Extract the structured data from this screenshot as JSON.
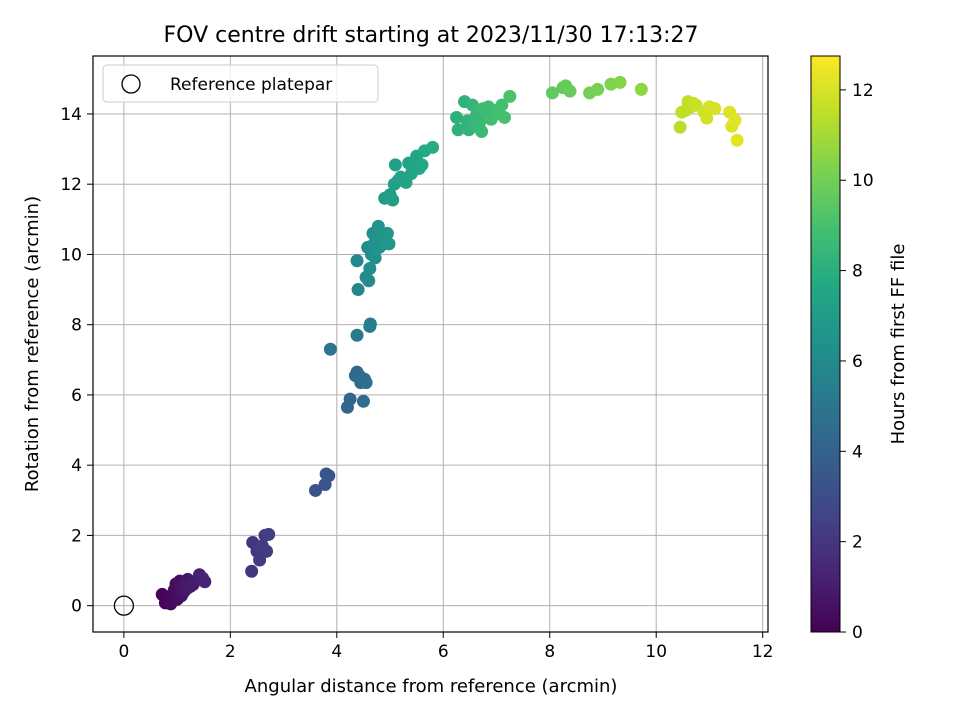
{
  "chart_data": {
    "type": "scatter",
    "title": "FOV centre drift starting at 2023/11/30 17:13:27",
    "xlabel": "Angular distance from reference (arcmin)",
    "ylabel": "Rotation from reference (arcmin)",
    "xlim": [
      -0.58,
      12.1
    ],
    "ylim": [
      -0.75,
      15.65
    ],
    "xticks": [
      0,
      2,
      4,
      6,
      8,
      10,
      12
    ],
    "yticks": [
      0,
      2,
      4,
      6,
      8,
      10,
      12,
      14
    ],
    "grid": true,
    "legend": {
      "position": "top-left",
      "entries": [
        "Reference platepar"
      ]
    },
    "reference_point": {
      "x": 0,
      "y": 0
    },
    "colorbar": {
      "label": "Hours from first FF file",
      "colormap": "viridis",
      "range": [
        0,
        12.75
      ],
      "ticks": [
        0,
        2,
        4,
        6,
        8,
        10,
        12
      ]
    },
    "points": [
      {
        "x": 0.72,
        "y": 0.32,
        "c": 0.1
      },
      {
        "x": 0.78,
        "y": 0.08,
        "c": 0.15
      },
      {
        "x": 0.82,
        "y": 0.22,
        "c": 0.2
      },
      {
        "x": 0.88,
        "y": 0.05,
        "c": 0.25
      },
      {
        "x": 0.9,
        "y": 0.3,
        "c": 0.3
      },
      {
        "x": 0.95,
        "y": 0.45,
        "c": 0.35
      },
      {
        "x": 0.98,
        "y": 0.62,
        "c": 0.4
      },
      {
        "x": 1.0,
        "y": 0.18,
        "c": 0.45
      },
      {
        "x": 1.03,
        "y": 0.4,
        "c": 0.5
      },
      {
        "x": 1.05,
        "y": 0.7,
        "c": 0.55
      },
      {
        "x": 1.08,
        "y": 0.28,
        "c": 0.6
      },
      {
        "x": 1.1,
        "y": 0.55,
        "c": 0.65
      },
      {
        "x": 1.12,
        "y": 0.38,
        "c": 0.7
      },
      {
        "x": 1.15,
        "y": 0.65,
        "c": 0.75
      },
      {
        "x": 1.18,
        "y": 0.48,
        "c": 0.8
      },
      {
        "x": 1.2,
        "y": 0.75,
        "c": 0.85
      },
      {
        "x": 1.25,
        "y": 0.55,
        "c": 0.9
      },
      {
        "x": 1.3,
        "y": 0.6,
        "c": 1.0
      },
      {
        "x": 1.42,
        "y": 0.88,
        "c": 1.1
      },
      {
        "x": 1.48,
        "y": 0.78,
        "c": 1.2
      },
      {
        "x": 1.52,
        "y": 0.68,
        "c": 1.25
      },
      {
        "x": 2.4,
        "y": 0.98,
        "c": 1.9
      },
      {
        "x": 2.42,
        "y": 1.8,
        "c": 1.95
      },
      {
        "x": 2.5,
        "y": 1.55,
        "c": 2.05
      },
      {
        "x": 2.55,
        "y": 1.3,
        "c": 2.1
      },
      {
        "x": 2.6,
        "y": 1.7,
        "c": 2.15
      },
      {
        "x": 2.65,
        "y": 2.0,
        "c": 2.2
      },
      {
        "x": 2.68,
        "y": 1.55,
        "c": 2.25
      },
      {
        "x": 2.72,
        "y": 2.03,
        "c": 2.3
      },
      {
        "x": 3.6,
        "y": 3.28,
        "c": 3.2
      },
      {
        "x": 3.78,
        "y": 3.45,
        "c": 3.3
      },
      {
        "x": 3.8,
        "y": 3.75,
        "c": 3.35
      },
      {
        "x": 3.85,
        "y": 3.7,
        "c": 3.4
      },
      {
        "x": 4.2,
        "y": 5.65,
        "c": 4.2
      },
      {
        "x": 4.25,
        "y": 5.88,
        "c": 4.25
      },
      {
        "x": 4.35,
        "y": 6.55,
        "c": 4.3
      },
      {
        "x": 4.38,
        "y": 6.65,
        "c": 4.35
      },
      {
        "x": 4.42,
        "y": 6.55,
        "c": 4.4
      },
      {
        "x": 4.45,
        "y": 6.35,
        "c": 4.45
      },
      {
        "x": 4.5,
        "y": 5.82,
        "c": 4.5
      },
      {
        "x": 4.52,
        "y": 6.45,
        "c": 4.55
      },
      {
        "x": 4.55,
        "y": 6.35,
        "c": 4.6
      },
      {
        "x": 3.88,
        "y": 7.3,
        "c": 5.0
      },
      {
        "x": 4.38,
        "y": 7.7,
        "c": 5.2
      },
      {
        "x": 4.62,
        "y": 7.95,
        "c": 5.3
      },
      {
        "x": 4.63,
        "y": 8.02,
        "c": 5.35
      },
      {
        "x": 4.4,
        "y": 9.0,
        "c": 5.8
      },
      {
        "x": 4.38,
        "y": 9.82,
        "c": 5.9
      },
      {
        "x": 4.55,
        "y": 9.35,
        "c": 6.0
      },
      {
        "x": 4.6,
        "y": 9.25,
        "c": 6.05
      },
      {
        "x": 4.62,
        "y": 9.6,
        "c": 6.1
      },
      {
        "x": 4.58,
        "y": 10.2,
        "c": 6.15
      },
      {
        "x": 4.65,
        "y": 10.0,
        "c": 6.2
      },
      {
        "x": 4.68,
        "y": 10.6,
        "c": 6.25
      },
      {
        "x": 4.7,
        "y": 10.3,
        "c": 6.3
      },
      {
        "x": 4.72,
        "y": 9.9,
        "c": 6.35
      },
      {
        "x": 4.75,
        "y": 10.45,
        "c": 6.4
      },
      {
        "x": 4.78,
        "y": 10.8,
        "c": 6.45
      },
      {
        "x": 4.8,
        "y": 10.2,
        "c": 6.5
      },
      {
        "x": 4.85,
        "y": 10.55,
        "c": 6.55
      },
      {
        "x": 4.88,
        "y": 10.3,
        "c": 6.6
      },
      {
        "x": 4.92,
        "y": 10.45,
        "c": 6.65
      },
      {
        "x": 4.95,
        "y": 10.6,
        "c": 6.7
      },
      {
        "x": 4.98,
        "y": 10.3,
        "c": 6.75
      },
      {
        "x": 4.9,
        "y": 11.6,
        "c": 7.0
      },
      {
        "x": 5.0,
        "y": 11.7,
        "c": 7.05
      },
      {
        "x": 5.05,
        "y": 11.55,
        "c": 7.1
      },
      {
        "x": 5.08,
        "y": 12.0,
        "c": 7.15
      },
      {
        "x": 5.1,
        "y": 12.55,
        "c": 7.2
      },
      {
        "x": 5.15,
        "y": 12.1,
        "c": 7.25
      },
      {
        "x": 5.2,
        "y": 12.2,
        "c": 7.3
      },
      {
        "x": 5.3,
        "y": 12.05,
        "c": 7.35
      },
      {
        "x": 5.35,
        "y": 12.6,
        "c": 7.4
      },
      {
        "x": 5.4,
        "y": 12.3,
        "c": 7.45
      },
      {
        "x": 5.45,
        "y": 12.55,
        "c": 7.5
      },
      {
        "x": 5.5,
        "y": 12.8,
        "c": 7.55
      },
      {
        "x": 5.55,
        "y": 12.45,
        "c": 7.6
      },
      {
        "x": 5.6,
        "y": 12.55,
        "c": 7.65
      },
      {
        "x": 5.65,
        "y": 12.95,
        "c": 7.7
      },
      {
        "x": 5.8,
        "y": 13.05,
        "c": 7.8
      },
      {
        "x": 6.25,
        "y": 13.9,
        "c": 8.1
      },
      {
        "x": 6.28,
        "y": 13.55,
        "c": 8.15
      },
      {
        "x": 6.4,
        "y": 14.35,
        "c": 8.2
      },
      {
        "x": 6.45,
        "y": 13.8,
        "c": 8.25
      },
      {
        "x": 6.48,
        "y": 13.55,
        "c": 8.3
      },
      {
        "x": 6.55,
        "y": 14.25,
        "c": 8.35
      },
      {
        "x": 6.58,
        "y": 13.65,
        "c": 8.4
      },
      {
        "x": 6.62,
        "y": 13.95,
        "c": 8.45
      },
      {
        "x": 6.65,
        "y": 14.1,
        "c": 8.5
      },
      {
        "x": 6.68,
        "y": 13.75,
        "c": 8.55
      },
      {
        "x": 6.72,
        "y": 13.5,
        "c": 8.6
      },
      {
        "x": 6.75,
        "y": 14.15,
        "c": 8.65
      },
      {
        "x": 6.8,
        "y": 14.05,
        "c": 8.7
      },
      {
        "x": 6.85,
        "y": 14.2,
        "c": 8.75
      },
      {
        "x": 6.9,
        "y": 13.85,
        "c": 8.8
      },
      {
        "x": 7.0,
        "y": 14.1,
        "c": 8.85
      },
      {
        "x": 7.05,
        "y": 14.0,
        "c": 8.9
      },
      {
        "x": 7.1,
        "y": 14.25,
        "c": 8.95
      },
      {
        "x": 7.15,
        "y": 13.9,
        "c": 9.0
      },
      {
        "x": 7.25,
        "y": 14.5,
        "c": 9.1
      },
      {
        "x": 8.05,
        "y": 14.6,
        "c": 9.6
      },
      {
        "x": 8.25,
        "y": 14.75,
        "c": 9.7
      },
      {
        "x": 8.3,
        "y": 14.8,
        "c": 9.75
      },
      {
        "x": 8.38,
        "y": 14.65,
        "c": 9.8
      },
      {
        "x": 8.75,
        "y": 14.6,
        "c": 10.0
      },
      {
        "x": 8.9,
        "y": 14.7,
        "c": 10.1
      },
      {
        "x": 9.15,
        "y": 14.85,
        "c": 10.3
      },
      {
        "x": 9.32,
        "y": 14.9,
        "c": 10.4
      },
      {
        "x": 9.72,
        "y": 14.7,
        "c": 10.6
      },
      {
        "x": 10.45,
        "y": 13.62,
        "c": 11.4
      },
      {
        "x": 10.48,
        "y": 14.05,
        "c": 11.45
      },
      {
        "x": 10.55,
        "y": 14.1,
        "c": 11.5
      },
      {
        "x": 10.6,
        "y": 14.35,
        "c": 11.55
      },
      {
        "x": 10.65,
        "y": 14.2,
        "c": 11.6
      },
      {
        "x": 10.7,
        "y": 14.3,
        "c": 11.65
      },
      {
        "x": 10.75,
        "y": 14.25,
        "c": 11.7
      },
      {
        "x": 10.9,
        "y": 14.05,
        "c": 11.8
      },
      {
        "x": 10.95,
        "y": 13.88,
        "c": 11.85
      },
      {
        "x": 11.0,
        "y": 14.2,
        "c": 11.9
      },
      {
        "x": 11.1,
        "y": 14.15,
        "c": 11.95
      },
      {
        "x": 11.38,
        "y": 14.05,
        "c": 12.1
      },
      {
        "x": 11.42,
        "y": 13.65,
        "c": 12.15
      },
      {
        "x": 11.48,
        "y": 13.82,
        "c": 12.2
      },
      {
        "x": 11.52,
        "y": 13.25,
        "c": 12.25
      }
    ]
  }
}
